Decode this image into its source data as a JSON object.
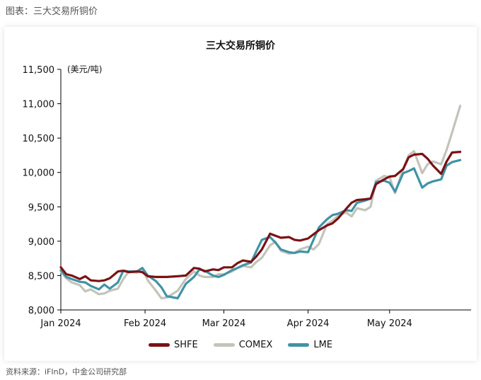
{
  "caption": "图表：三大交易所铜价",
  "source": "资料来源：iFInD，中金公司研究部",
  "colors": {
    "SHFE": "#7B1113",
    "COMEX": "#C3C3BA",
    "LME": "#3F93A6"
  },
  "chart_data": {
    "type": "line",
    "title": "三大交易所铜价",
    "ylabel": "(美元/吨)",
    "xlabel": "",
    "ylim": [
      8000,
      11500
    ],
    "yticks": [
      8000,
      8500,
      9000,
      9500,
      10000,
      10500,
      11000,
      11500
    ],
    "ytick_labels": [
      "8,000",
      "8,500",
      "9,000",
      "9,500",
      "10,000",
      "10,500",
      "11,000",
      "11,500"
    ],
    "xlim": [
      "2024-01-01",
      "2024-05-31"
    ],
    "xticks": [
      "2024-01-01",
      "2024-02-01",
      "2024-03-01",
      "2024-04-01",
      "2024-05-01"
    ],
    "xtick_labels": [
      "Jan 2024",
      "Feb 2024",
      "Mar 2024",
      "Apr 2024",
      "May 2024"
    ],
    "legend_position": "bottom",
    "grid": false,
    "series": [
      {
        "name": "SHFE",
        "x": [
          "2024-01-01",
          "2024-01-03",
          "2024-01-05",
          "2024-01-08",
          "2024-01-10",
          "2024-01-12",
          "2024-01-15",
          "2024-01-17",
          "2024-01-19",
          "2024-01-22",
          "2024-01-24",
          "2024-01-26",
          "2024-01-29",
          "2024-01-31",
          "2024-02-02",
          "2024-02-05",
          "2024-02-07",
          "2024-02-09",
          "2024-02-13",
          "2024-02-16",
          "2024-02-19",
          "2024-02-21",
          "2024-02-23",
          "2024-02-26",
          "2024-02-28",
          "2024-03-01",
          "2024-03-04",
          "2024-03-06",
          "2024-03-08",
          "2024-03-11",
          "2024-03-13",
          "2024-03-15",
          "2024-03-18",
          "2024-03-20",
          "2024-03-22",
          "2024-03-25",
          "2024-03-27",
          "2024-03-29",
          "2024-04-01",
          "2024-04-03",
          "2024-04-05",
          "2024-04-08",
          "2024-04-10",
          "2024-04-12",
          "2024-04-15",
          "2024-04-17",
          "2024-04-19",
          "2024-04-22",
          "2024-04-24",
          "2024-04-26",
          "2024-04-29",
          "2024-05-01",
          "2024-05-03",
          "2024-05-06",
          "2024-05-08",
          "2024-05-10",
          "2024-05-13",
          "2024-05-15",
          "2024-05-17",
          "2024-05-20",
          "2024-05-22",
          "2024-05-24",
          "2024-05-27"
        ],
        "values": [
          8620,
          8520,
          8500,
          8450,
          8490,
          8430,
          8420,
          8430,
          8460,
          8560,
          8570,
          8550,
          8560,
          8550,
          8490,
          8480,
          8480,
          8480,
          8490,
          8500,
          8610,
          8600,
          8560,
          8590,
          8580,
          8620,
          8620,
          8680,
          8720,
          8700,
          8780,
          8880,
          9110,
          9080,
          9050,
          9060,
          9020,
          9010,
          9040,
          9100,
          9160,
          9230,
          9260,
          9330,
          9470,
          9560,
          9600,
          9610,
          9620,
          9830,
          9900,
          9940,
          9950,
          10050,
          10220,
          10260,
          10270,
          10200,
          10100,
          9980,
          10160,
          10290,
          10300
        ]
      },
      {
        "name": "COMEX",
        "x": [
          "2024-01-01",
          "2024-01-03",
          "2024-01-05",
          "2024-01-08",
          "2024-01-10",
          "2024-01-12",
          "2024-01-15",
          "2024-01-17",
          "2024-01-19",
          "2024-01-22",
          "2024-01-24",
          "2024-01-26",
          "2024-01-29",
          "2024-01-31",
          "2024-02-02",
          "2024-02-05",
          "2024-02-07",
          "2024-02-09",
          "2024-02-13",
          "2024-02-16",
          "2024-02-19",
          "2024-02-21",
          "2024-02-23",
          "2024-02-26",
          "2024-02-28",
          "2024-03-01",
          "2024-03-04",
          "2024-03-06",
          "2024-03-08",
          "2024-03-11",
          "2024-03-13",
          "2024-03-15",
          "2024-03-18",
          "2024-03-20",
          "2024-03-22",
          "2024-03-25",
          "2024-03-27",
          "2024-03-29",
          "2024-04-01",
          "2024-04-03",
          "2024-04-05",
          "2024-04-08",
          "2024-04-10",
          "2024-04-12",
          "2024-04-15",
          "2024-04-17",
          "2024-04-19",
          "2024-04-22",
          "2024-04-24",
          "2024-04-26",
          "2024-04-29",
          "2024-05-01",
          "2024-05-03",
          "2024-05-06",
          "2024-05-08",
          "2024-05-10",
          "2024-05-13",
          "2024-05-15",
          "2024-05-17",
          "2024-05-20",
          "2024-05-22",
          "2024-05-24",
          "2024-05-27"
        ],
        "values": [
          8560,
          8460,
          8400,
          8360,
          8270,
          8300,
          8230,
          8240,
          8280,
          8310,
          8450,
          8560,
          8540,
          8600,
          8430,
          8280,
          8170,
          8180,
          8280,
          8450,
          8560,
          8500,
          8480,
          8480,
          8520,
          8520,
          8560,
          8610,
          8640,
          8620,
          8700,
          8760,
          8940,
          8990,
          8860,
          8820,
          8830,
          8880,
          8920,
          8880,
          8960,
          9250,
          9300,
          9370,
          9420,
          9360,
          9480,
          9450,
          9500,
          9880,
          9950,
          9930,
          9700,
          10050,
          10250,
          10310,
          9990,
          10120,
          10160,
          10120,
          10330,
          10580,
          10970
        ]
      },
      {
        "name": "LME",
        "x": [
          "2024-01-01",
          "2024-01-03",
          "2024-01-05",
          "2024-01-08",
          "2024-01-10",
          "2024-01-12",
          "2024-01-15",
          "2024-01-17",
          "2024-01-19",
          "2024-01-22",
          "2024-01-24",
          "2024-01-26",
          "2024-01-29",
          "2024-01-31",
          "2024-02-02",
          "2024-02-05",
          "2024-02-07",
          "2024-02-09",
          "2024-02-13",
          "2024-02-16",
          "2024-02-19",
          "2024-02-21",
          "2024-02-23",
          "2024-02-26",
          "2024-02-28",
          "2024-03-01",
          "2024-03-04",
          "2024-03-06",
          "2024-03-08",
          "2024-03-11",
          "2024-03-13",
          "2024-03-15",
          "2024-03-18",
          "2024-03-20",
          "2024-03-22",
          "2024-03-25",
          "2024-03-27",
          "2024-03-29",
          "2024-04-01",
          "2024-04-03",
          "2024-04-05",
          "2024-04-08",
          "2024-04-10",
          "2024-04-12",
          "2024-04-15",
          "2024-04-17",
          "2024-04-19",
          "2024-04-22",
          "2024-04-24",
          "2024-04-26",
          "2024-04-29",
          "2024-05-01",
          "2024-05-03",
          "2024-05-06",
          "2024-05-08",
          "2024-05-10",
          "2024-05-13",
          "2024-05-15",
          "2024-05-17",
          "2024-05-20",
          "2024-05-22",
          "2024-05-24",
          "2024-05-27"
        ],
        "values": [
          8580,
          8480,
          8450,
          8410,
          8400,
          8350,
          8300,
          8370,
          8310,
          8400,
          8570,
          8560,
          8560,
          8610,
          8500,
          8420,
          8330,
          8200,
          8170,
          8380,
          8480,
          8590,
          8570,
          8500,
          8480,
          8510,
          8580,
          8610,
          8650,
          8690,
          8860,
          9020,
          9060,
          8980,
          8880,
          8840,
          8830,
          8850,
          8840,
          9020,
          9200,
          9320,
          9380,
          9400,
          9450,
          9440,
          9560,
          9590,
          9620,
          9860,
          9880,
          9850,
          9720,
          9990,
          10020,
          10060,
          9780,
          9840,
          9870,
          9900,
          10100,
          10150,
          10180
        ]
      }
    ]
  }
}
